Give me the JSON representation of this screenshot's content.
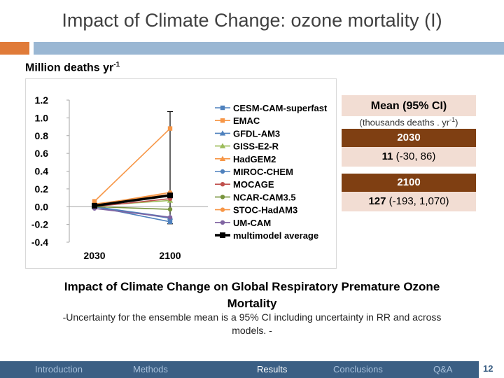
{
  "slide": {
    "title": "Impact of Climate Change: ozone mortality (I)",
    "units_main": "Million deaths yr",
    "units_sup": "-1",
    "caption_line1": "Impact of Climate Change on Global Respiratory Premature Ozone",
    "caption_line2": "Mortality",
    "note_line1": "-Uncertainty for the ensemble mean is a 95% CI including uncertainty in RR and across",
    "note_line2": "models. -",
    "page_number": "12"
  },
  "stats": {
    "mean_header": "Mean (95% CI)",
    "mean_sub_main": "(thousands deaths . yr",
    "mean_sub_sup": "-1",
    "mean_sub_end": ")",
    "y2030_label": "2030",
    "y2030_mean": "11",
    "y2030_ci": " (-30, 86)",
    "y2100_label": "2100",
    "y2100_mean": "127",
    "y2100_ci": " (-193, 1,070)"
  },
  "footer": {
    "items": [
      "Introduction",
      "Methods",
      "Results",
      "Conclusions",
      "Q&A"
    ],
    "active": "Results"
  },
  "chart_data": {
    "type": "line",
    "categories": [
      "2030",
      "2100"
    ],
    "ylim": [
      -0.4,
      1.2
    ],
    "yticks": [
      "1.2",
      "1.0",
      "0.8",
      "0.6",
      "0.4",
      "0.2",
      "0.0",
      "-0.2",
      "-0.4"
    ],
    "ytick_values": [
      1.2,
      1.0,
      0.8,
      0.6,
      0.4,
      0.2,
      0.0,
      -0.2,
      -0.4
    ],
    "legend_position": "right",
    "series": [
      {
        "name": "CESM-CAM-superfast",
        "values": [
          0.0,
          -0.17
        ],
        "color": "#4f81bd",
        "marker": "square"
      },
      {
        "name": "EMAC",
        "values": [
          0.06,
          0.88
        ],
        "color": "#f79646",
        "marker": "square"
      },
      {
        "name": "GFDL-AM3",
        "values": [
          0.0,
          -0.12
        ],
        "color": "#4f81bd",
        "marker": "triangle"
      },
      {
        "name": "GISS-E2-R",
        "values": [
          0.01,
          0.07
        ],
        "color": "#9bbb59",
        "marker": "triangle"
      },
      {
        "name": "HadGEM2",
        "values": [
          0.03,
          0.14
        ],
        "color": "#f79646",
        "marker": "triangle"
      },
      {
        "name": "MIROC-CHEM",
        "values": [
          0.0,
          -0.13
        ],
        "color": "#4f81bd",
        "marker": "circle"
      },
      {
        "name": "MOCAGE",
        "values": [
          0.0,
          0.09
        ],
        "color": "#c0504d",
        "marker": "circle"
      },
      {
        "name": "NCAR-CAM3.5",
        "values": [
          0.0,
          -0.03
        ],
        "color": "#77933c",
        "marker": "circle"
      },
      {
        "name": "STOC-HadAM3",
        "values": [
          0.02,
          0.16
        ],
        "color": "#f79646",
        "marker": "circle"
      },
      {
        "name": "UM-CAM",
        "values": [
          -0.02,
          -0.12
        ],
        "color": "#8064a2",
        "marker": "circle"
      },
      {
        "name": "multimodel average",
        "values": [
          0.011,
          0.127
        ],
        "color": "#000000",
        "marker": "square",
        "bold": true
      }
    ],
    "error_bar": {
      "category": "2100",
      "low": -0.193,
      "high": 1.07
    }
  }
}
